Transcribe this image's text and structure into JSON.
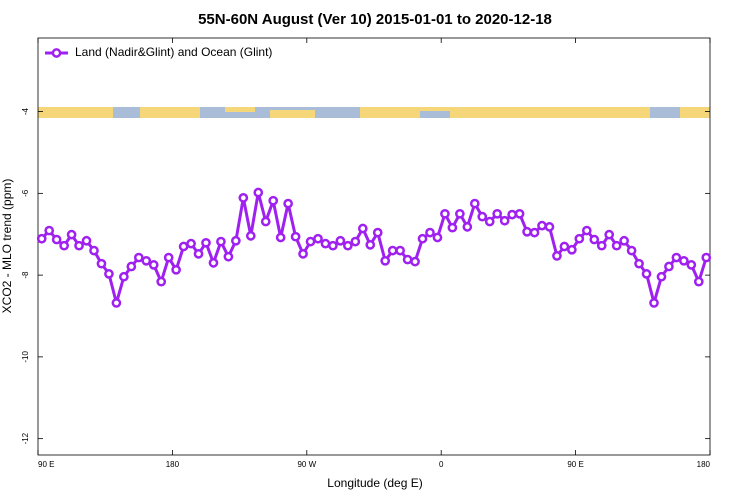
{
  "chart_data": {
    "type": "line",
    "title": "55N-60N August (Ver 10)   2015-01-01 to 2020-12-18",
    "x_label": "Longitude (deg E)",
    "y_label": "XCO2 - MLO trend (ppm)",
    "xlim": [
      90,
      540
    ],
    "xticks": [
      {
        "value": 90,
        "label": "90 E"
      },
      {
        "value": 180,
        "label": "180"
      },
      {
        "value": 270,
        "label": "90 W"
      },
      {
        "value": 360,
        "label": "0"
      },
      {
        "value": 450,
        "label": "90 E"
      },
      {
        "value": 540,
        "label": "180"
      }
    ],
    "ylim": [
      -12.4,
      -2.2
    ],
    "yticks": [
      -4,
      -6,
      -8,
      -10,
      -12
    ],
    "legend_position": "upper-left",
    "x": [
      92.5,
      97.5,
      102.5,
      107.5,
      112.5,
      117.5,
      122.5,
      127.5,
      132.5,
      137.5,
      142.5,
      147.5,
      152.5,
      157.5,
      162.5,
      167.5,
      172.5,
      177.5,
      182.5,
      187.5,
      192.5,
      197.5,
      202.5,
      207.5,
      212.5,
      217.5,
      222.5,
      227.5,
      232.5,
      237.5,
      242.5,
      247.5,
      252.5,
      257.5,
      262.5,
      267.5,
      272.5,
      277.5,
      282.5,
      287.5,
      292.5,
      297.5,
      302.5,
      307.5,
      312.5,
      317.5,
      322.5,
      327.5,
      332.5,
      337.5,
      342.5,
      347.5,
      352.5,
      357.5,
      362.5,
      367.5,
      372.5,
      377.5,
      382.5,
      387.5,
      392.5,
      397.5,
      402.5,
      407.5,
      412.5,
      417.5,
      422.5,
      427.5,
      432.5,
      437.5,
      442.5,
      447.5,
      452.5,
      457.5,
      462.5,
      467.5,
      472.5,
      477.5,
      482.5,
      487.5,
      492.5,
      497.5,
      502.5,
      507.5,
      512.5,
      517.5,
      522.5,
      527.5,
      532.5,
      537.5
    ],
    "series": [
      {
        "name": "Land (Nadir&Glint) and Ocean (Glint)",
        "color": "#a020f0",
        "values": [
          -7.11,
          -6.91,
          -7.13,
          -7.28,
          -7.01,
          -7.28,
          -7.16,
          -7.4,
          -7.72,
          -7.97,
          -8.68,
          -8.04,
          -7.79,
          -7.57,
          -7.65,
          -7.75,
          -8.16,
          -7.57,
          -7.87,
          -7.3,
          -7.23,
          -7.48,
          -7.21,
          -7.7,
          -7.18,
          -7.55,
          -7.16,
          -6.11,
          -7.04,
          -5.98,
          -6.69,
          -6.18,
          -7.08,
          -6.25,
          -7.06,
          -7.48,
          -7.18,
          -7.11,
          -7.23,
          -7.28,
          -7.16,
          -7.28,
          -7.18,
          -6.86,
          -7.26,
          -6.96,
          -7.65,
          -7.4,
          -7.4,
          -7.62,
          -7.67,
          -7.11,
          -6.96,
          -7.08,
          -6.5,
          -6.84,
          -6.5,
          -6.82,
          -6.25,
          -6.57,
          -6.69,
          -6.5,
          -6.67,
          -6.52,
          -6.5,
          -6.94,
          -6.96,
          -6.79,
          -6.82,
          -7.53,
          -7.3,
          -7.38,
          -7.11,
          -6.91,
          -7.13,
          -7.28,
          -7.01,
          -7.28,
          -7.16,
          -7.4,
          -7.72,
          -7.97,
          -8.68,
          -8.04,
          -7.79,
          -7.57,
          -7.65,
          -7.75,
          -8.16,
          -7.57
        ]
      }
    ]
  }
}
